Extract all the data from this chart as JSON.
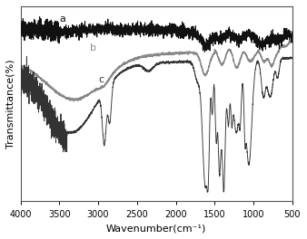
{
  "xlabel": "Wavenumber(cm⁻¹)",
  "ylabel": "Transmittance(%)",
  "xlim": [
    500,
    4000
  ],
  "label_a": "a",
  "label_b": "b",
  "label_c": "c",
  "color_a": "#111111",
  "color_b": "#888888",
  "color_c": "#333333",
  "xticks": [
    500,
    1000,
    1500,
    2000,
    2500,
    3000,
    3500,
    4000
  ],
  "background": "#ffffff"
}
